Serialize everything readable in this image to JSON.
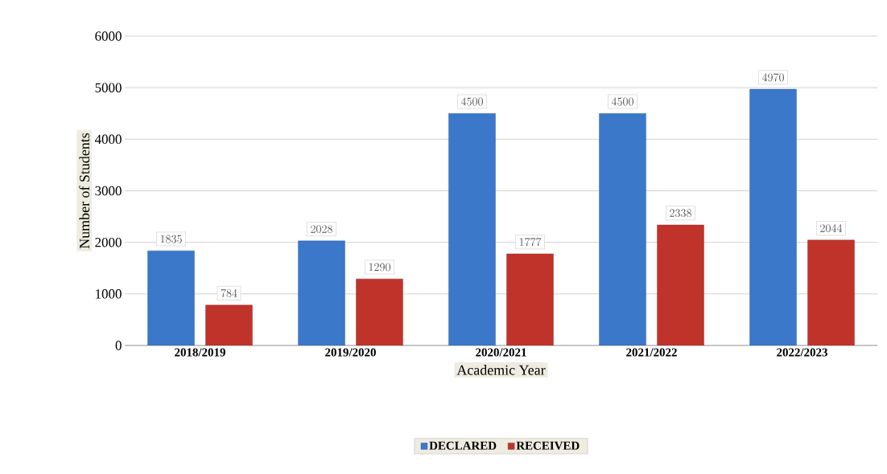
{
  "chart_data": {
    "type": "bar",
    "xlabel": "Academic Year",
    "ylabel": "Number of Students",
    "categories": [
      "2018/2019",
      "2019/2020",
      "2020/2021",
      "2021/2022",
      "2022/2023"
    ],
    "series": [
      {
        "name": "DECLARED",
        "color": "#3b78c9",
        "values": [
          1835,
          2028,
          4500,
          4500,
          4970
        ]
      },
      {
        "name": "RECEIVED",
        "color": "#c0332b",
        "values": [
          784,
          1290,
          1777,
          2338,
          2044
        ]
      }
    ],
    "ylim": [
      0,
      6000
    ],
    "yticks": [
      0,
      1000,
      2000,
      3000,
      4000,
      5000,
      6000
    ],
    "grid": "y",
    "legend": "bottom",
    "data_labels": true
  }
}
